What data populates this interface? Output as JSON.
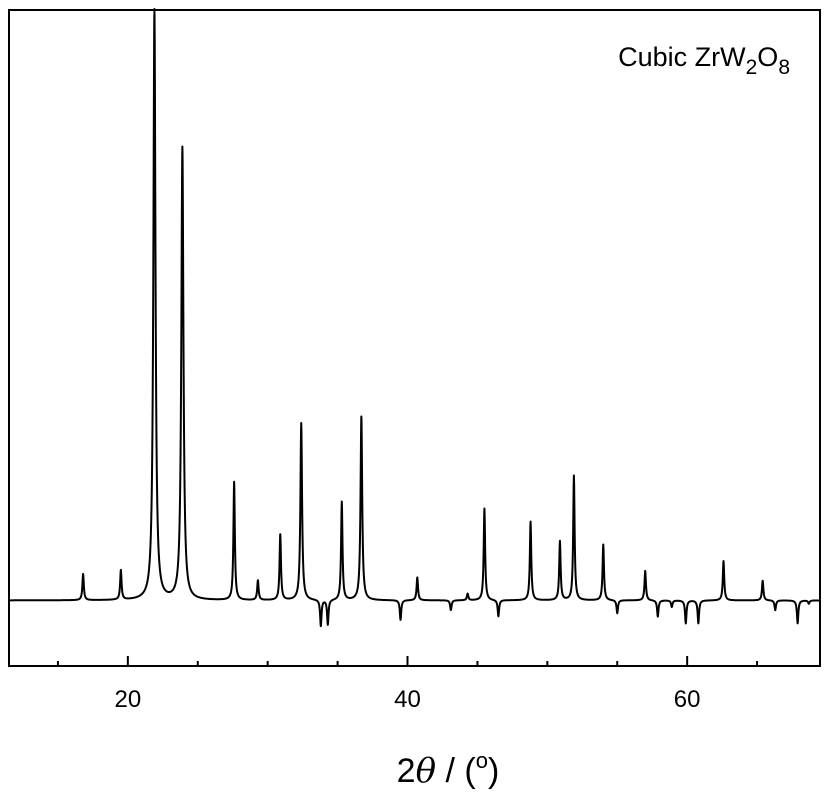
{
  "chart_data": {
    "type": "line",
    "legend": {
      "prefix": "Cubic ZrW",
      "sub1": "2",
      "mid": "O",
      "sub2": "8",
      "placement": "top-right"
    },
    "xlabel": {
      "prefix": "2",
      "theta": "θ",
      "slash": " / (",
      "sup": "o",
      "suffix": ")"
    },
    "xlim": [
      11.5,
      69.5
    ],
    "ylim": [
      0,
      1
    ],
    "x_ticks": [
      20,
      40,
      60
    ],
    "x_tick_labels": [
      "20",
      "40",
      "60"
    ],
    "y_ticks_shown": false,
    "grid": false,
    "baseline": 0.1,
    "peaks": [
      {
        "x": 16.8,
        "y": 0.14
      },
      {
        "x": 19.5,
        "y": 0.145
      },
      {
        "x": 21.9,
        "y": 1.0
      },
      {
        "x": 23.9,
        "y": 0.79
      },
      {
        "x": 27.6,
        "y": 0.28
      },
      {
        "x": 29.3,
        "y": 0.13
      },
      {
        "x": 30.9,
        "y": 0.2
      },
      {
        "x": 32.4,
        "y": 0.37
      },
      {
        "x": 33.8,
        "y": 0.06
      },
      {
        "x": 34.3,
        "y": 0.062
      },
      {
        "x": 35.3,
        "y": 0.25
      },
      {
        "x": 36.7,
        "y": 0.38
      },
      {
        "x": 39.5,
        "y": 0.07
      },
      {
        "x": 40.7,
        "y": 0.135
      },
      {
        "x": 43.1,
        "y": 0.085
      },
      {
        "x": 44.3,
        "y": 0.11
      },
      {
        "x": 45.5,
        "y": 0.24
      },
      {
        "x": 46.5,
        "y": 0.075
      },
      {
        "x": 48.8,
        "y": 0.22
      },
      {
        "x": 49.9,
        "y": 0.1
      },
      {
        "x": 50.9,
        "y": 0.19
      },
      {
        "x": 51.9,
        "y": 0.29
      },
      {
        "x": 54.0,
        "y": 0.185
      },
      {
        "x": 55.0,
        "y": 0.08
      },
      {
        "x": 57.0,
        "y": 0.145
      },
      {
        "x": 57.9,
        "y": 0.075
      },
      {
        "x": 58.9,
        "y": 0.09
      },
      {
        "x": 59.9,
        "y": 0.065
      },
      {
        "x": 60.8,
        "y": 0.065
      },
      {
        "x": 62.6,
        "y": 0.16
      },
      {
        "x": 65.4,
        "y": 0.13
      },
      {
        "x": 66.3,
        "y": 0.085
      },
      {
        "x": 67.9,
        "y": 0.065
      },
      {
        "x": 68.7,
        "y": 0.095
      },
      {
        "x": 69.4,
        "y": 0.1
      }
    ]
  }
}
